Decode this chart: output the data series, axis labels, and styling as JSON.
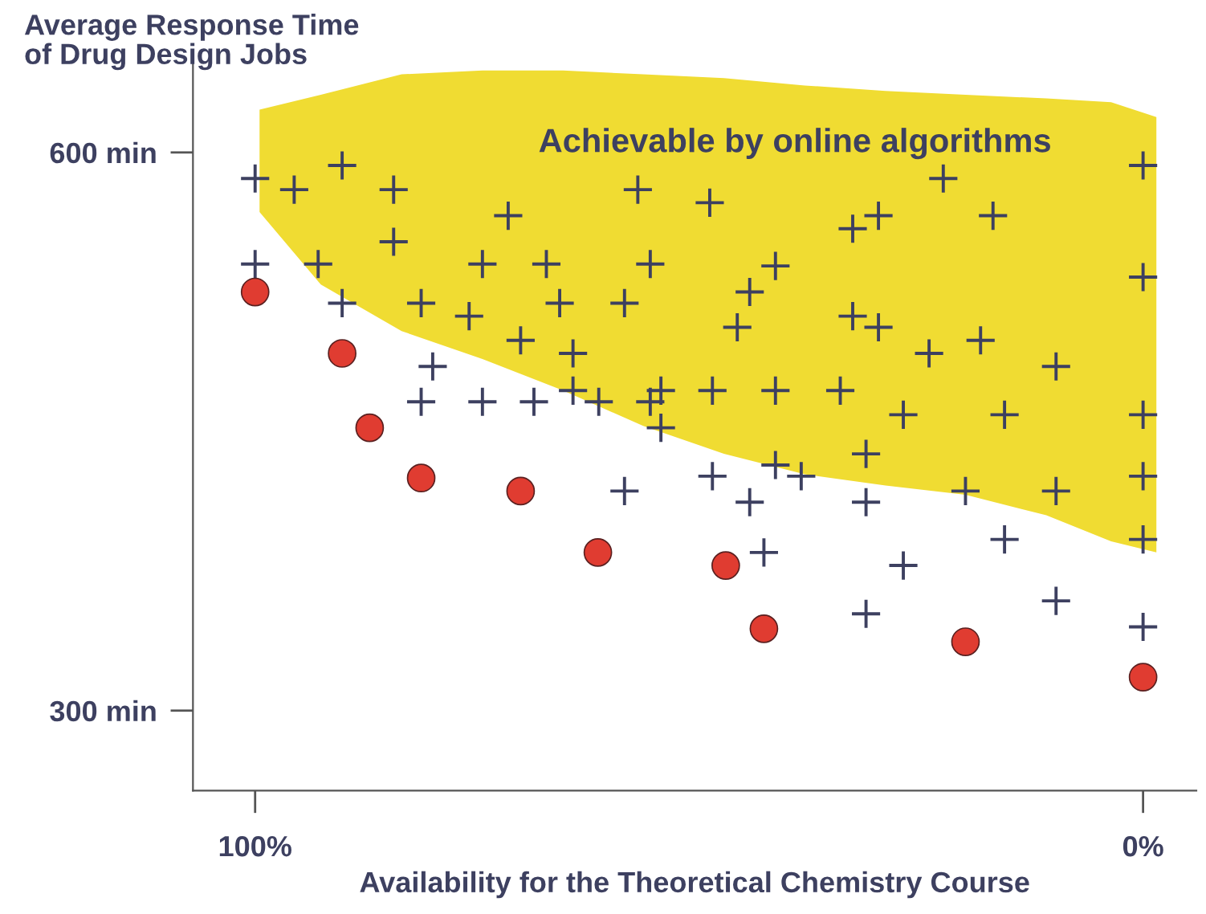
{
  "chart_data": {
    "type": "scatter",
    "ylabel": "Average Response Time\nof Drug Design Jobs",
    "xlabel": "Availability for the Theoretical Chemistry Course",
    "annotations": [
      "Achievable by online algorithms"
    ],
    "xlim": [
      107,
      -6
    ],
    "ylim": [
      257,
      650
    ],
    "xticks": [
      {
        "value": 100,
        "label": "100%"
      },
      {
        "value": 0,
        "label": "0%"
      }
    ],
    "yticks": [
      {
        "value": 600,
        "label": "600 min"
      },
      {
        "value": 300,
        "label": "300 min"
      }
    ],
    "grid": false,
    "legend": false,
    "series": [
      {
        "type": "area",
        "color": "#f0dc32",
        "x": [
          99.5,
          92.6,
          83.5,
          74.4,
          65.3,
          56.3,
          47.2,
          38.1,
          29.0,
          20.0,
          10.9,
          3.6,
          -1.5,
          -1.5,
          3.6,
          10.9,
          20.0,
          29.0,
          38.1,
          47.2,
          56.3,
          65.3,
          74.4,
          83.5,
          92.6,
          99.5
        ],
        "values": [
          568,
          529,
          504,
          489,
          472,
          453,
          438,
          427,
          421,
          416,
          405,
          391,
          385,
          619,
          627,
          629,
          631,
          633,
          636,
          640,
          642,
          644,
          644,
          642,
          631,
          623
        ]
      },
      {
        "marker": "cross",
        "color": "#3d4060",
        "x": [
          100,
          95.6,
          90.2,
          84.4,
          100,
          92.9,
          84.4,
          90.2,
          81.3,
          74.4,
          71.5,
          67.2,
          75.9,
          70.1,
          65.7,
          64.2,
          58.4,
          56.9,
          55.5,
          48.8,
          44.3,
          41.4,
          45.7,
          32.7,
          29.8,
          22.5,
          16.9,
          0,
          0,
          32.7,
          29.8,
          24.1,
          18.3,
          9.8,
          0,
          80.0,
          81.3,
          74.4,
          68.6,
          64.2,
          61.3,
          55.5,
          54.3,
          54.3,
          48.5,
          41.4,
          34.1,
          27.0,
          15.6,
          31.2,
          41.4,
          38.5,
          48.5,
          44.3,
          31.2,
          58.4,
          20.0,
          9.8,
          0,
          15.6,
          0,
          42.7,
          27.0,
          9.8,
          31.2,
          0
        ],
        "values": [
          586,
          580,
          593,
          580,
          540,
          540,
          552,
          519,
          519,
          540,
          566,
          540,
          512,
          499,
          519,
          492,
          519,
          580,
          540,
          573,
          525,
          539,
          506,
          559,
          566,
          586,
          566,
          593,
          533,
          512,
          506,
          492,
          499,
          485,
          459,
          485,
          466,
          466,
          466,
          472,
          466,
          466,
          472,
          452,
          472,
          472,
          472,
          459,
          459,
          438,
          432,
          426,
          426,
          412,
          412,
          418,
          418,
          418,
          426,
          392,
          392,
          385,
          378,
          359,
          352,
          345
        ]
      },
      {
        "marker": "circle",
        "color": "#e03c31",
        "x": [
          100,
          90.2,
          87.1,
          81.3,
          70.1,
          61.4,
          47.0,
          42.7,
          20.0,
          0
        ],
        "values": [
          525,
          492,
          452,
          425,
          418,
          385,
          378,
          344,
          337,
          318
        ]
      }
    ]
  }
}
